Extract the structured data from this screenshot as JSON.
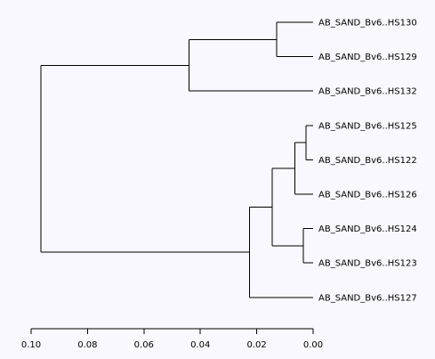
{
  "background": "#f8f8fe",
  "line_color": "#000000",
  "leaves": [
    "AB_SAND_Bv6..HS130",
    "AB_SAND_Bv6..HS129",
    "AB_SAND_Bv6..HS132",
    "AB_SAND_Bv6..HS125",
    "AB_SAND_Bv6..HS122",
    "AB_SAND_Bv6..HS126",
    "AB_SAND_Bv6..HS124",
    "AB_SAND_Bv6..HS123",
    "AB_SAND_Bv6..HS127"
  ],
  "merges": [
    {
      "id": "m1",
      "children": [
        "AB_SAND_Bv6..HS130",
        "AB_SAND_Bv6..HS129"
      ],
      "height": 0.013
    },
    {
      "id": "m2",
      "children": [
        "m1",
        "AB_SAND_Bv6..HS132"
      ],
      "height": 0.044
    },
    {
      "id": "m3",
      "children": [
        "AB_SAND_Bv6..HS125",
        "AB_SAND_Bv6..HS122"
      ],
      "height": 0.0025
    },
    {
      "id": "m4",
      "children": [
        "m3",
        "AB_SAND_Bv6..HS126"
      ],
      "height": 0.0065
    },
    {
      "id": "m5",
      "children": [
        "AB_SAND_Bv6..HS124",
        "AB_SAND_Bv6..HS123"
      ],
      "height": 0.0035
    },
    {
      "id": "m6",
      "children": [
        "m4",
        "m5"
      ],
      "height": 0.0145
    },
    {
      "id": "m7",
      "children": [
        "m6",
        "AB_SAND_Bv6..HS127"
      ],
      "height": 0.0225
    },
    {
      "id": "m8",
      "children": [
        "m2",
        "m7"
      ],
      "height": 0.0965
    }
  ],
  "axis": {
    "min": 0,
    "max": 0.1,
    "reversed": true,
    "ticks": [
      0.1,
      0.08,
      0.06,
      0.04,
      0.02,
      0.0
    ],
    "tick_labels": [
      "0.10",
      "0.08",
      "0.06",
      "0.04",
      "0.02",
      "0.00"
    ]
  }
}
